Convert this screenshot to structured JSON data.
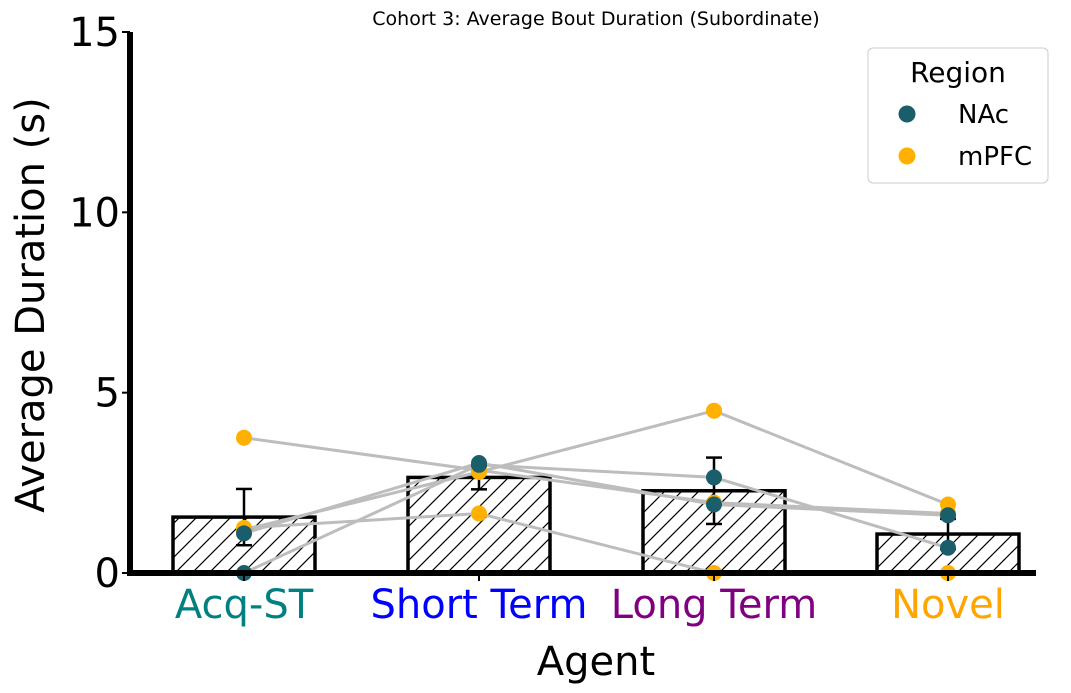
{
  "chart_data": {
    "type": "bar",
    "title": "Cohort 3: Average Bout Duration (Subordinate)",
    "xlabel": "Agent",
    "ylabel": "Average Duration (s)",
    "ylim": [
      0,
      15
    ],
    "yticks": [
      0,
      5,
      10,
      15
    ],
    "categories": [
      "Acq-ST",
      "Short Term",
      "Long Term",
      "Novel"
    ],
    "category_colors": [
      "#008080",
      "#0000ff",
      "#800080",
      "#ffa500"
    ],
    "means": [
      1.55,
      2.65,
      2.28,
      1.08
    ],
    "errors": [
      0.78,
      0.33,
      0.92,
      0.42
    ],
    "bar_fill": "#ffffff",
    "bar_edge": "#000000",
    "bar_hatch": "/",
    "grid": false,
    "legend": {
      "title": "Region",
      "position": "top-right",
      "entries": [
        {
          "label": "NAc",
          "color": "#1b5e6b"
        },
        {
          "label": "mPFC",
          "color": "#ffb000"
        }
      ]
    },
    "paired_line_color": "#bdbdbd",
    "subjects": [
      {
        "region": "mPFC",
        "values": [
          3.75,
          2.85,
          1.95,
          1.65
        ]
      },
      {
        "region": "mPFC",
        "values": [
          1.25,
          1.65,
          0.0,
          0.0
        ]
      },
      {
        "region": "mPFC",
        "values": [
          1.2,
          2.8,
          4.5,
          1.9
        ]
      },
      {
        "region": "NAc",
        "values": [
          0.0,
          3.0,
          2.65,
          0.7
        ]
      },
      {
        "region": "NAc",
        "values": [
          1.1,
          3.05,
          1.9,
          1.6
        ]
      }
    ]
  }
}
